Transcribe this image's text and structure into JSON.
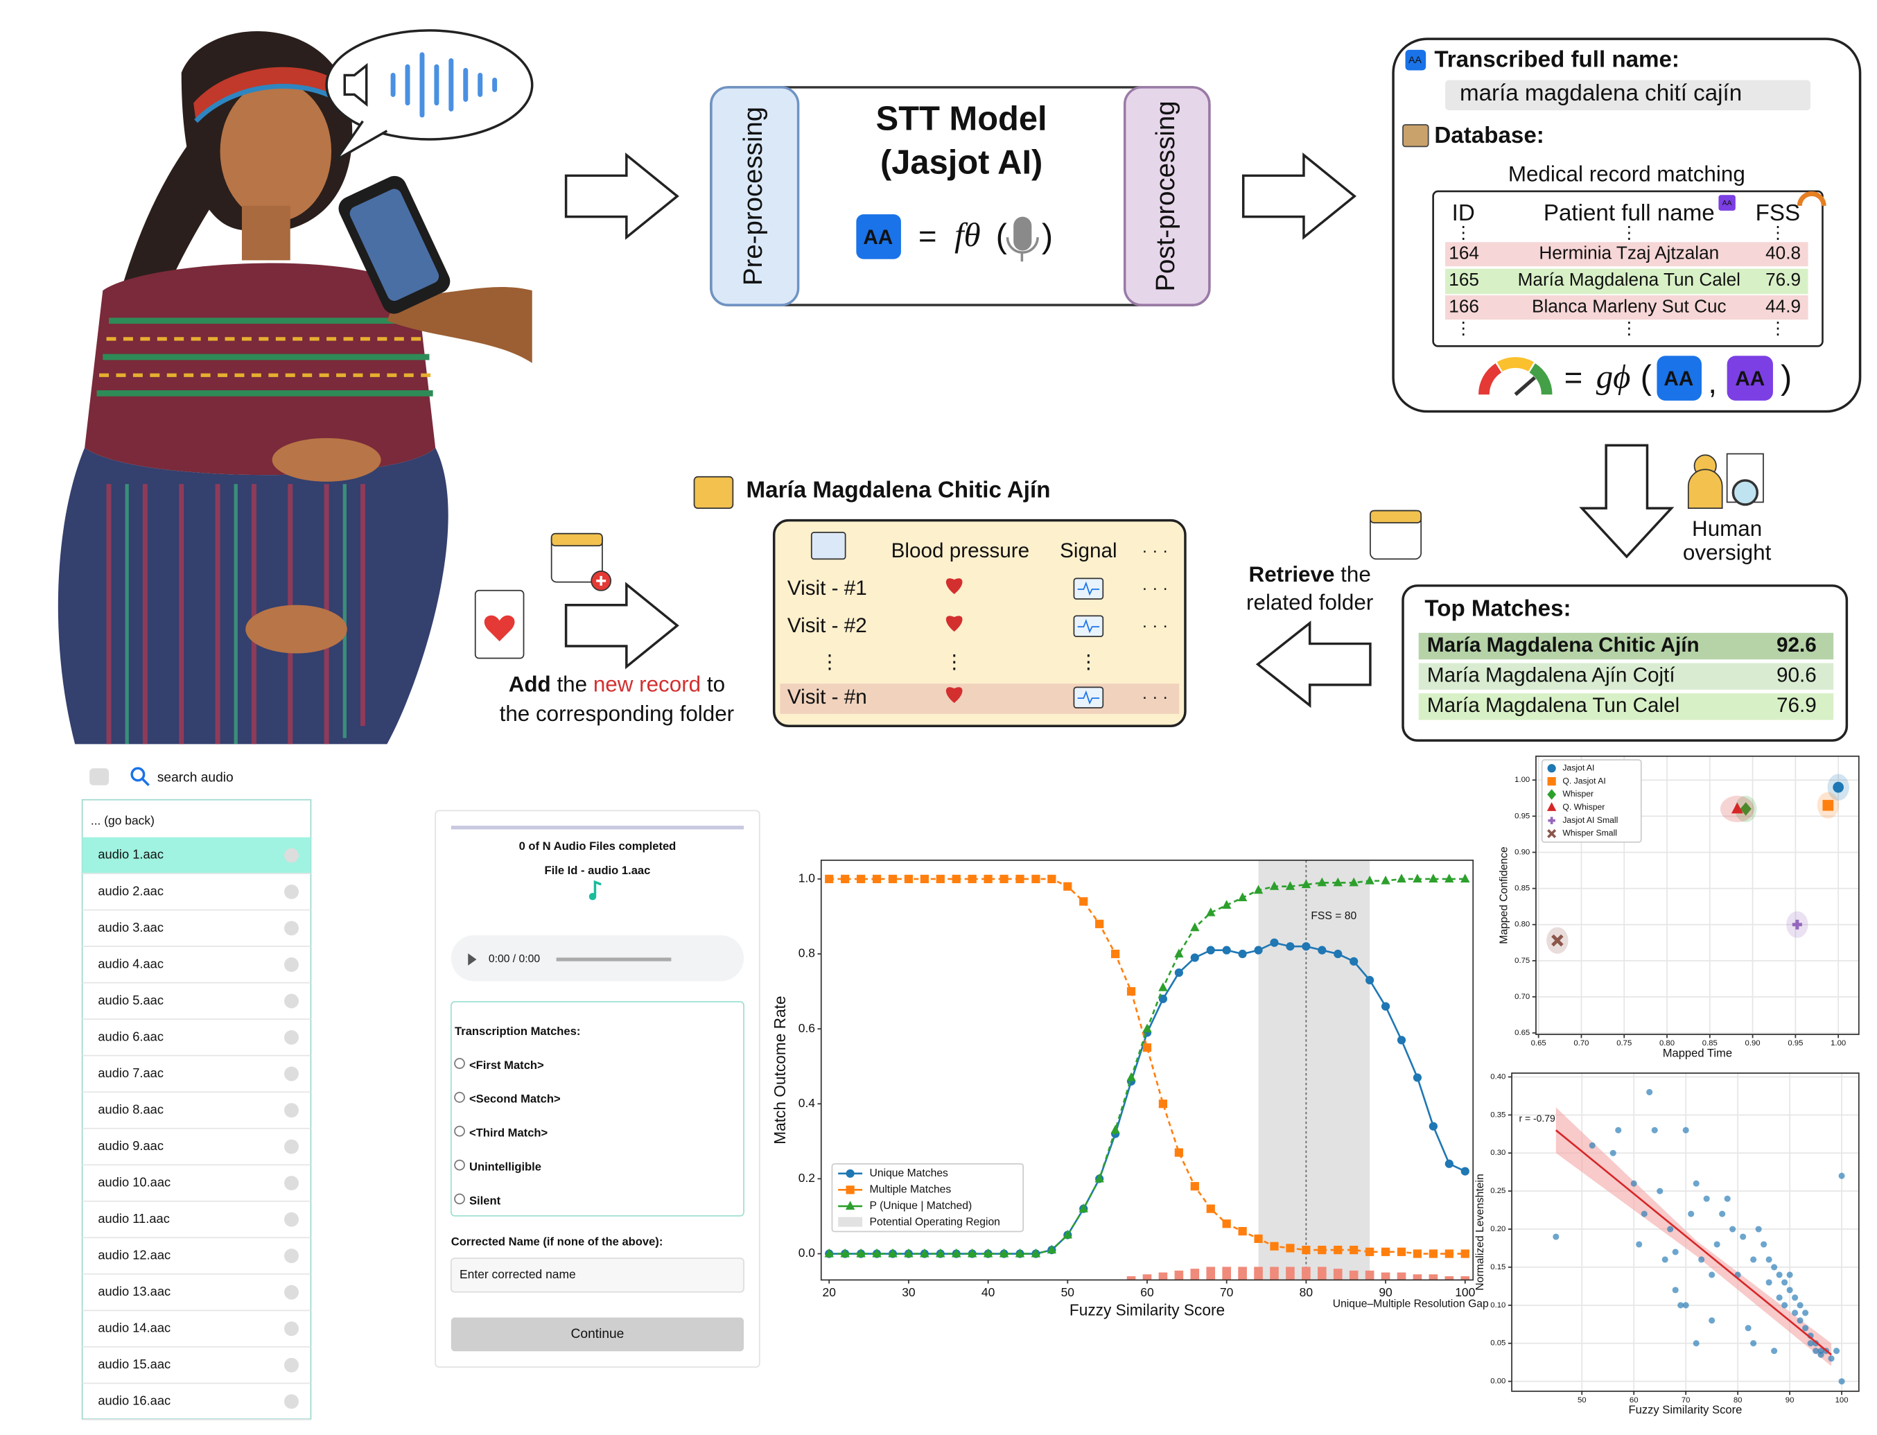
{
  "icons": {
    "text": "AA",
    "vdots": "⋮",
    "hdots": "· · ·"
  },
  "stt": {
    "title": "STT Model",
    "subtitle": "(Jasjot AI)",
    "pre": "Pre-processing",
    "post": "Post-processing",
    "formula": {
      "eq": "=",
      "fn": "fθ",
      "open": "(",
      "close": ")"
    }
  },
  "transcription": {
    "label": "Transcribed full name:",
    "value": "maría magdalena chití cajín",
    "db_label": "Database:",
    "subtitle": "Medical record matching",
    "table": {
      "header": [
        "ID",
        "Patient full name",
        "FSS"
      ],
      "rows": [
        [
          164,
          "Herminia Tzaj Ajtzalan",
          40.8
        ],
        [
          165,
          "María Magdalena Tun Calel",
          76.9
        ],
        [
          166,
          "Blanca Marleny Sut Cuc",
          44.9
        ]
      ]
    },
    "formula": {
      "eq": "=",
      "fn": "gϕ",
      "open": "(",
      "comma": ",",
      "close": ")"
    }
  },
  "oversight": [
    "Human",
    "oversight"
  ],
  "top_matches": {
    "title": "Top Matches:",
    "rows": [
      [
        "María Magdalena Chitic Ajín",
        92.6
      ],
      [
        "María Magdalena Ajín Cojtí",
        90.6
      ],
      [
        "María Magdalena Tun Calel",
        76.9
      ]
    ]
  },
  "retrieve": {
    "bold": "Retrieve",
    "rest": " the",
    "highlight": "related folder"
  },
  "record": {
    "title": "María Magdalena Chitic Ajín",
    "header": [
      "Blood pressure",
      "Signal"
    ],
    "rows": [
      "Visit - #1",
      "Visit - #2",
      "Visit - #n"
    ]
  },
  "add": {
    "bold": "Add",
    "mid": " the ",
    "highlight": "new record",
    "end": " to",
    "line2": "the corresponding folder"
  },
  "audio_list": {
    "search": "search audio",
    "back": "... (go back)",
    "items": [
      "audio 1.aac",
      "audio 2.aac",
      "audio 3.aac",
      "audio 4.aac",
      "audio 5.aac",
      "audio 6.aac",
      "audio 7.aac",
      "audio 8.aac",
      "audio 9.aac",
      "audio 10.aac",
      "audio 11.aac",
      "audio 12.aac",
      "audio 13.aac",
      "audio 14.aac",
      "audio 15.aac",
      "audio 16.aac"
    ]
  },
  "form": {
    "progress": "0 of N Audio Files completed",
    "file": "File Id - audio 1.aac",
    "time": "0:00 / 0:00",
    "matches_title": "Transcription Matches:",
    "options": [
      "<First Match>",
      "<Second Match>",
      "<Third Match>",
      "Unintelligible",
      "Silent"
    ],
    "corrected_label": "Corrected Name (if none of the above):",
    "placeholder": "Enter corrected name",
    "button": "Continue"
  },
  "chart_data": [
    {
      "type": "line",
      "xlabel": "Fuzzy Similarity Score",
      "ylabel": "Match Outcome Rate",
      "grid": false,
      "legend": "lower left",
      "x": [
        20,
        22,
        24,
        26,
        28,
        30,
        32,
        34,
        36,
        38,
        40,
        42,
        44,
        46,
        48,
        50,
        52,
        54,
        56,
        58,
        60,
        62,
        64,
        66,
        68,
        70,
        72,
        74,
        76,
        78,
        80,
        82,
        84,
        86,
        88,
        90,
        92,
        94,
        96,
        98,
        100
      ],
      "xlim": [
        19,
        101
      ],
      "ylim": [
        -0.07,
        1.05
      ],
      "xticks": [
        20,
        30,
        40,
        50,
        60,
        70,
        80,
        90,
        100
      ],
      "yticks": [
        {
          "value": 0,
          "label": "0.0"
        },
        {
          "value": 0.2,
          "label": "0.2"
        },
        {
          "value": 0.4,
          "label": "0.4"
        },
        {
          "value": 0.6,
          "label": "0.6"
        },
        {
          "value": 0.8,
          "label": "0.8"
        },
        {
          "value": 1,
          "label": "1.0"
        }
      ],
      "series": [
        {
          "name": "Unique Matches",
          "color": "#1f77b4",
          "marker": "circle",
          "linestyle": "solid",
          "values": [
            0,
            0,
            0,
            0,
            0,
            0,
            0,
            0,
            0,
            0,
            0,
            0,
            0,
            0,
            0.01,
            0.05,
            0.12,
            0.2,
            0.32,
            0.46,
            0.59,
            0.68,
            0.75,
            0.79,
            0.81,
            0.81,
            0.8,
            0.81,
            0.83,
            0.82,
            0.82,
            0.81,
            0.8,
            0.78,
            0.73,
            0.66,
            0.57,
            0.47,
            0.34,
            0.24,
            0.22
          ]
        },
        {
          "name": "Multiple Matches",
          "color": "#ff7f0e",
          "marker": "square",
          "linestyle": "dashed",
          "values": [
            1,
            1,
            1,
            1,
            1,
            1,
            1,
            1,
            1,
            1,
            1,
            1,
            1,
            1,
            1,
            0.98,
            0.94,
            0.88,
            0.8,
            0.7,
            0.55,
            0.4,
            0.27,
            0.18,
            0.12,
            0.08,
            0.06,
            0.04,
            0.02,
            0.015,
            0.01,
            0.01,
            0.01,
            0.01,
            0.005,
            0.005,
            0.005,
            0,
            0,
            0,
            0
          ]
        },
        {
          "name": "P (Unique | Matched)",
          "color": "#2ca02c",
          "marker": "triangle",
          "linestyle": "dashed",
          "values": [
            0,
            0,
            0,
            0,
            0,
            0,
            0,
            0,
            0,
            0,
            0,
            0,
            0,
            0,
            0.01,
            0.05,
            0.12,
            0.2,
            0.33,
            0.47,
            0.6,
            0.71,
            0.8,
            0.87,
            0.91,
            0.93,
            0.95,
            0.97,
            0.98,
            0.98,
            0.985,
            0.99,
            0.99,
            0.99,
            0.995,
            0.995,
            1,
            1,
            1,
            1,
            1
          ]
        }
      ],
      "region": {
        "name": "Potential Operating Region",
        "range": [
          74,
          88
        ],
        "color": "#e2e2e2"
      },
      "vline": {
        "value": 80,
        "label": "FSS = 80"
      },
      "bars": {
        "name": "Unique–Multiple Resolution Gap",
        "color": "#f08a7a",
        "x": [
          58,
          60,
          62,
          64,
          66,
          68,
          70,
          72,
          74,
          76,
          78,
          80,
          82,
          84,
          86,
          88,
          90,
          92,
          94,
          96,
          98,
          100
        ],
        "values": [
          -0.06,
          -0.055,
          -0.05,
          -0.045,
          -0.04,
          -0.035,
          -0.035,
          -0.035,
          -0.035,
          -0.035,
          -0.035,
          -0.035,
          -0.035,
          -0.04,
          -0.045,
          -0.045,
          -0.05,
          -0.05,
          -0.055,
          -0.055,
          -0.06,
          -0.06
        ]
      }
    },
    {
      "type": "scatter",
      "xlabel": "Mapped Time",
      "ylabel": "Mapped Confidence",
      "grid": true,
      "legend": "upper left",
      "xlim": [
        0.647,
        1.024
      ],
      "ylim": [
        0.648,
        1.033
      ],
      "xticks": [
        0.65,
        {
          "value": 0.7,
          "label": "0.70"
        },
        0.75,
        {
          "value": 0.8,
          "label": "0.80"
        },
        0.85,
        {
          "value": 0.9,
          "label": "0.90"
        },
        0.95,
        {
          "value": 1,
          "label": "1.00"
        }
      ],
      "yticks": [
        0.65,
        {
          "value": 0.7,
          "label": "0.70"
        },
        0.75,
        {
          "value": 0.8,
          "label": "0.80"
        },
        0.85,
        {
          "value": 0.9,
          "label": "0.90"
        },
        0.95,
        {
          "value": 1,
          "label": "1.00"
        }
      ],
      "series": [
        {
          "name": "Jasjot AI",
          "color": "#1f77b4",
          "marker": "circle",
          "x": [
            1.0
          ],
          "values": [
            0.99
          ]
        },
        {
          "name": "Q. Jasjot AI",
          "color": "#ff7f0e",
          "marker": "square",
          "x": [
            0.988
          ],
          "values": [
            0.965
          ]
        },
        {
          "name": "Whisper",
          "color": "#2ca02c",
          "marker": "diamond",
          "x": [
            0.892
          ],
          "values": [
            0.96
          ]
        },
        {
          "name": "Q. Whisper",
          "color": "#d62728",
          "marker": "triangle",
          "x": [
            0.882
          ],
          "values": [
            0.96
          ]
        },
        {
          "name": "Jasjot AI Small",
          "color": "#9467bd",
          "marker": "plus",
          "x": [
            0.952
          ],
          "values": [
            0.8
          ]
        },
        {
          "name": "Whisper Small",
          "color": "#8c564b",
          "marker": "x",
          "x": [
            0.672
          ],
          "values": [
            0.778
          ]
        }
      ]
    },
    {
      "type": "scatter",
      "xlabel": "Fuzzy Similarity Score",
      "ylabel": "Normalized Levenshtein",
      "grid": true,
      "color": "#2e7fb8",
      "xlim": [
        36.5,
        103.3
      ],
      "ylim": [
        -0.013,
        0.405
      ],
      "xticks": [
        50,
        60,
        70,
        80,
        90,
        100
      ],
      "yticks": [
        {
          "value": 0,
          "label": "0.00"
        },
        0.05,
        {
          "value": 0.1,
          "label": "0.10"
        },
        0.15,
        {
          "value": 0.2,
          "label": "0.20"
        },
        0.25,
        {
          "value": 0.3,
          "label": "0.30"
        },
        0.35,
        {
          "value": 0.4,
          "label": "0.40"
        }
      ],
      "x": [
        45,
        52,
        56,
        57,
        60,
        63,
        64,
        65,
        62,
        67,
        68,
        69,
        70,
        71,
        72,
        73,
        74,
        75,
        76,
        77,
        78,
        79,
        80,
        81,
        82,
        83,
        84,
        85,
        86,
        86,
        87,
        88,
        88,
        89,
        89,
        90,
        90,
        91,
        91,
        92,
        92,
        93,
        93,
        94,
        94,
        95,
        95,
        96,
        96,
        97,
        98,
        99,
        100,
        100,
        66,
        70,
        72,
        75,
        83,
        87,
        61,
        68
      ],
      "values": [
        0.19,
        0.31,
        0.3,
        0.33,
        0.26,
        0.38,
        0.33,
        0.25,
        0.22,
        0.2,
        0.12,
        0.1,
        0.33,
        0.22,
        0.26,
        0.16,
        0.24,
        0.14,
        0.18,
        0.22,
        0.24,
        0.2,
        0.14,
        0.19,
        0.07,
        0.16,
        0.2,
        0.18,
        0.13,
        0.16,
        0.15,
        0.11,
        0.14,
        0.1,
        0.13,
        0.12,
        0.14,
        0.09,
        0.11,
        0.1,
        0.08,
        0.07,
        0.09,
        0.06,
        0.05,
        0.05,
        0.04,
        0.04,
        0.035,
        0.04,
        0.03,
        0.04,
        0,
        0.27,
        0.16,
        0.1,
        0.05,
        0.08,
        0.05,
        0.04,
        0.18,
        0.17
      ],
      "fit": {
        "label": "r = -0.79",
        "color": "#d62728",
        "x": [
          45,
          98
        ],
        "values": [
          0.33,
          0.035
        ]
      },
      "band": {
        "x": [
          45,
          72,
          98
        ],
        "upper": [
          0.36,
          0.185,
          0.05
        ],
        "lower": [
          0.3,
          0.165,
          0.02
        ]
      }
    }
  ]
}
